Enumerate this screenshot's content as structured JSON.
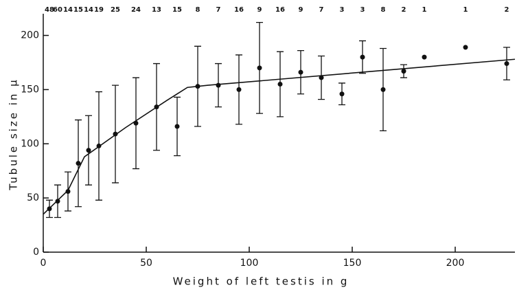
{
  "chart_data": {
    "type": "scatter",
    "xlabel": "Weight of left testis in g",
    "ylabel": "Tubule size in μ",
    "xlim": [
      0,
      229
    ],
    "ylim": [
      0,
      220
    ],
    "xticks": [
      0,
      50,
      100,
      150,
      200
    ],
    "yticks": [
      0,
      50,
      100,
      150,
      200
    ],
    "color": "#111111",
    "series": [
      {
        "name": null,
        "color": "#111111",
        "x": [
          3,
          7,
          12,
          17,
          22,
          27,
          35,
          45,
          55,
          65,
          75,
          85,
          95,
          105,
          115,
          125,
          135,
          145,
          155,
          165,
          175,
          185,
          205,
          225
        ],
        "values": [
          40,
          47,
          56,
          82,
          94,
          98,
          109,
          119,
          134,
          116,
          153,
          154,
          150,
          170,
          155,
          166,
          161,
          146,
          180,
          150,
          167,
          180,
          189,
          174
        ],
        "errors": [
          8,
          15,
          18,
          40,
          32,
          50,
          45,
          42,
          40,
          27,
          37,
          20,
          32,
          42,
          30,
          20,
          20,
          10,
          15,
          38,
          6,
          null,
          null,
          15
        ],
        "counts": [
          48,
          60,
          14,
          15,
          14,
          19,
          25,
          24,
          13,
          15,
          8,
          7,
          16,
          9,
          16,
          9,
          7,
          3,
          3,
          8,
          2,
          1,
          1,
          2
        ]
      }
    ],
    "fit": {
      "x": [
        0,
        12,
        20,
        40,
        60,
        70,
        80,
        229
      ],
      "values": [
        35,
        57,
        88,
        115,
        140,
        152,
        154,
        178
      ]
    }
  }
}
